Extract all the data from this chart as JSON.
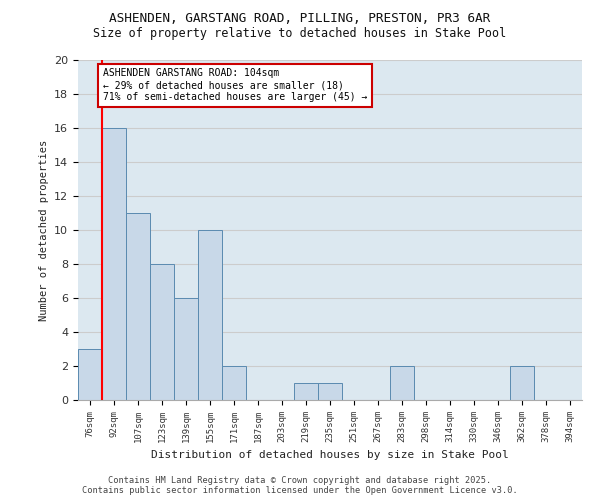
{
  "title1": "ASHENDEN, GARSTANG ROAD, PILLING, PRESTON, PR3 6AR",
  "title2": "Size of property relative to detached houses in Stake Pool",
  "xlabel": "Distribution of detached houses by size in Stake Pool",
  "ylabel": "Number of detached properties",
  "bins": [
    "76sqm",
    "92sqm",
    "107sqm",
    "123sqm",
    "139sqm",
    "155sqm",
    "171sqm",
    "187sqm",
    "203sqm",
    "219sqm",
    "235sqm",
    "251sqm",
    "267sqm",
    "283sqm",
    "298sqm",
    "314sqm",
    "330sqm",
    "346sqm",
    "362sqm",
    "378sqm",
    "394sqm"
  ],
  "values": [
    3,
    16,
    11,
    8,
    6,
    10,
    2,
    0,
    0,
    1,
    1,
    0,
    0,
    2,
    0,
    0,
    0,
    0,
    2,
    0,
    0
  ],
  "bar_color": "#c8d8e8",
  "bar_edge_color": "#5a8ab0",
  "annotation_text": "ASHENDEN GARSTANG ROAD: 104sqm\n← 29% of detached houses are smaller (18)\n71% of semi-detached houses are larger (45) →",
  "annotation_box_color": "#ffffff",
  "annotation_box_edge": "#cc0000",
  "ylim": [
    0,
    20
  ],
  "yticks": [
    0,
    2,
    4,
    6,
    8,
    10,
    12,
    14,
    16,
    18,
    20
  ],
  "grid_color": "#cccccc",
  "background_color": "#dce8f0",
  "footer_text": "Contains HM Land Registry data © Crown copyright and database right 2025.\nContains public sector information licensed under the Open Government Licence v3.0.",
  "red_line_x": 0.5
}
